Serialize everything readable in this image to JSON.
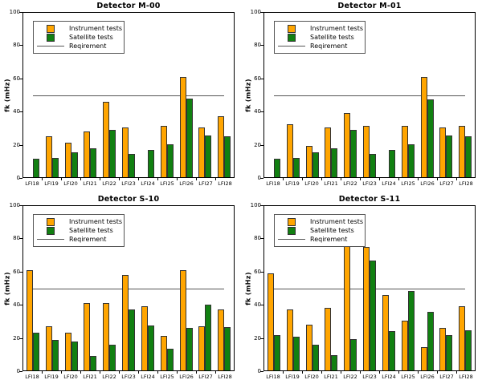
{
  "figure": {
    "background": "#ffffff",
    "rows": 2,
    "cols": 2
  },
  "colors": {
    "instrument": "#FFA500",
    "satellite": "#118011",
    "bar_border": "#333333",
    "requirement_line": "#555555",
    "axis": "#000000",
    "legend_border": "#555555"
  },
  "chart_data": [
    {
      "type": "bar",
      "title": "Detector M-00",
      "ylabel": "fk (mHz)",
      "ylim": [
        0,
        100
      ],
      "yticks": [
        0,
        20,
        40,
        60,
        80,
        100
      ],
      "grid": false,
      "legend_position": "upper-left",
      "legend": [
        "Instrument tests",
        "Satellite tests",
        "Reqirement"
      ],
      "categories": [
        "LFI18",
        "LFI19",
        "LFI20",
        "LFI21",
        "LFI22",
        "LFI23",
        "LFI24",
        "LFI25",
        "LFI26",
        "LFI27",
        "LFI28"
      ],
      "series": [
        {
          "name": "Instrument tests",
          "values": [
            0,
            25,
            21,
            28,
            46,
            30,
            0,
            31,
            61,
            30,
            37
          ]
        },
        {
          "name": "Satellite tests",
          "values": [
            11,
            11.5,
            15,
            17.5,
            29,
            14,
            16.5,
            20,
            48,
            25.5,
            25
          ]
        }
      ],
      "requirement": 50
    },
    {
      "type": "bar",
      "title": "Detector M-01",
      "ylabel": "fk (mHz)",
      "ylim": [
        0,
        100
      ],
      "yticks": [
        0,
        20,
        40,
        60,
        80,
        100
      ],
      "grid": false,
      "legend_position": "upper-left",
      "legend": [
        "Instrument tests",
        "Satellite tests",
        "Reqirement"
      ],
      "categories": [
        "LFI18",
        "LFI19",
        "LFI20",
        "LFI21",
        "LFI22",
        "LFI23",
        "LFI24",
        "LFI25",
        "LFI26",
        "LFI27",
        "LFI28"
      ],
      "series": [
        {
          "name": "Instrument tests",
          "values": [
            0,
            32,
            19,
            30,
            39,
            31,
            0,
            31,
            61,
            30,
            31
          ]
        },
        {
          "name": "Satellite tests",
          "values": [
            11,
            11.5,
            15,
            17.5,
            29,
            14,
            16.5,
            20,
            47.5,
            25.5,
            25
          ]
        }
      ],
      "requirement": 50
    },
    {
      "type": "bar",
      "title": "Detector S-10",
      "ylabel": "fk (mHz)",
      "ylim": [
        0,
        100
      ],
      "yticks": [
        0,
        20,
        40,
        60,
        80,
        100
      ],
      "grid": false,
      "legend_position": "upper-left",
      "legend": [
        "Instrument tests",
        "Satellite tests",
        "Reqirement"
      ],
      "categories": [
        "LFI18",
        "LFI19",
        "LFI20",
        "LFI21",
        "LFI22",
        "LFI23",
        "LFI24",
        "LFI25",
        "LFI26",
        "LFI27",
        "LFI28"
      ],
      "series": [
        {
          "name": "Instrument tests",
          "values": [
            61,
            27,
            23,
            41,
            41,
            58,
            39,
            21,
            61,
            27,
            37
          ]
        },
        {
          "name": "Satellite tests",
          "values": [
            23,
            18.5,
            17.5,
            9,
            15.5,
            37,
            27.5,
            13,
            26,
            40,
            26.5
          ]
        }
      ],
      "requirement": 50
    },
    {
      "type": "bar",
      "title": "Detector S-11",
      "ylabel": "fk (mHz)",
      "ylim": [
        0,
        100
      ],
      "yticks": [
        0,
        20,
        40,
        60,
        80,
        100
      ],
      "grid": false,
      "legend_position": "upper-left",
      "legend": [
        "Instrument tests",
        "Satellite tests",
        "Reqirement"
      ],
      "categories": [
        "LFI18",
        "LFI19",
        "LFI20",
        "LFI21",
        "LFI22",
        "LFI23",
        "LFI24",
        "LFI25",
        "LFI26",
        "LFI27",
        "LFI28"
      ],
      "series": [
        {
          "name": "Instrument tests",
          "values": [
            59,
            37,
            28,
            38,
            76,
            75,
            46,
            30,
            14,
            26,
            39
          ]
        },
        {
          "name": "Satellite tests",
          "values": [
            21.5,
            20.5,
            15.5,
            9.5,
            19,
            67,
            24,
            48.5,
            35.5,
            21.5,
            24.5
          ]
        }
      ],
      "requirement": 50
    }
  ]
}
